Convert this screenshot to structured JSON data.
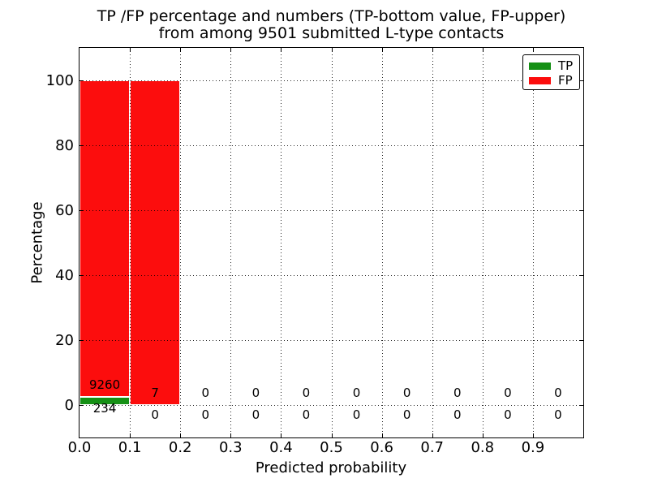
{
  "title": {
    "line1": "TP /FP percentage and numbers (TP-bottom value, FP-upper)",
    "line2": "from among 9501 submitted L-type contacts"
  },
  "axes": {
    "xlabel": "Predicted probability",
    "ylabel": "Percentage"
  },
  "legend": [
    {
      "label": "TP",
      "color": "#159015"
    },
    {
      "label": "FP",
      "color": "#fc0d0d"
    }
  ],
  "chart_data": {
    "type": "bar",
    "stacked": true,
    "title": "TP /FP percentage and numbers (TP-bottom value, FP-upper) from among 9501 submitted L-type contacts",
    "xlabel": "Predicted probability",
    "ylabel": "Percentage",
    "xlim": [
      0.0,
      1.0
    ],
    "ylim": [
      -10,
      110
    ],
    "grid": true,
    "grid_style": "dotted",
    "legend_position": "upper right",
    "total_submitted": 9501,
    "bin_width": 0.1,
    "bin_starts": [
      0.0,
      0.1,
      0.2,
      0.3,
      0.4,
      0.5,
      0.6,
      0.7,
      0.8,
      0.9
    ],
    "x_tick_labels": [
      "0.0",
      "0.1",
      "0.2",
      "0.3",
      "0.4",
      "0.5",
      "0.6",
      "0.7",
      "0.8",
      "0.9"
    ],
    "y_ticks": [
      0,
      20,
      40,
      60,
      80,
      100
    ],
    "series": [
      {
        "name": "TP",
        "color": "#159015",
        "counts": [
          234,
          0,
          0,
          0,
          0,
          0,
          0,
          0,
          0,
          0
        ],
        "percentages": [
          2.46,
          0,
          0,
          0,
          0,
          0,
          0,
          0,
          0,
          0
        ]
      },
      {
        "name": "FP",
        "color": "#fc0d0d",
        "counts": [
          9260,
          7,
          0,
          0,
          0,
          0,
          0,
          0,
          0,
          0
        ],
        "percentages": [
          97.54,
          100,
          0,
          0,
          0,
          0,
          0,
          0,
          0,
          0
        ]
      }
    ]
  }
}
